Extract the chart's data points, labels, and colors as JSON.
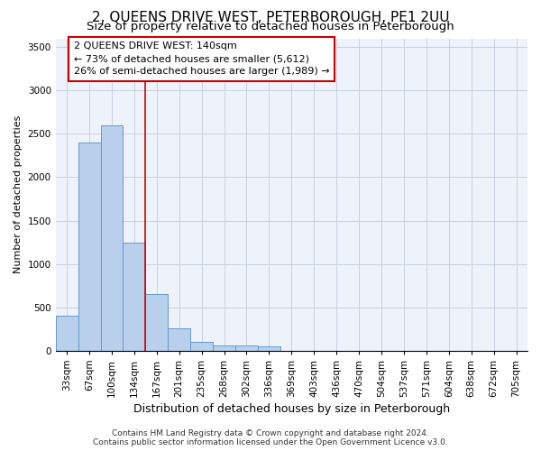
{
  "title": "2, QUEENS DRIVE WEST, PETERBOROUGH, PE1 2UU",
  "subtitle": "Size of property relative to detached houses in Peterborough",
  "xlabel": "Distribution of detached houses by size in Peterborough",
  "ylabel": "Number of detached properties",
  "categories": [
    "33sqm",
    "67sqm",
    "100sqm",
    "134sqm",
    "167sqm",
    "201sqm",
    "235sqm",
    "268sqm",
    "302sqm",
    "336sqm",
    "369sqm",
    "403sqm",
    "436sqm",
    "470sqm",
    "504sqm",
    "537sqm",
    "571sqm",
    "604sqm",
    "638sqm",
    "672sqm",
    "705sqm"
  ],
  "values": [
    400,
    2400,
    2600,
    1250,
    650,
    260,
    100,
    60,
    60,
    50,
    0,
    0,
    0,
    0,
    0,
    0,
    0,
    0,
    0,
    0,
    0
  ],
  "bar_color": "#b8d0eb",
  "bar_edge_color": "#6699cc",
  "ylim": [
    0,
    3600
  ],
  "yticks": [
    0,
    500,
    1000,
    1500,
    2000,
    2500,
    3000,
    3500
  ],
  "red_line_x": 3.5,
  "annotation_line1": "2 QUEENS DRIVE WEST: 140sqm",
  "annotation_line2": "← 73% of detached houses are smaller (5,612)",
  "annotation_line3": "26% of semi-detached houses are larger (1,989) →",
  "footer_line1": "Contains HM Land Registry data © Crown copyright and database right 2024.",
  "footer_line2": "Contains public sector information licensed under the Open Government Licence v3.0.",
  "background_color": "#eef2fb",
  "grid_color": "#c8d0e0",
  "title_fontsize": 11,
  "subtitle_fontsize": 9.5,
  "ylabel_fontsize": 8,
  "xlabel_fontsize": 9,
  "tick_fontsize": 7.5,
  "annot_fontsize": 8,
  "footer_fontsize": 6.5
}
